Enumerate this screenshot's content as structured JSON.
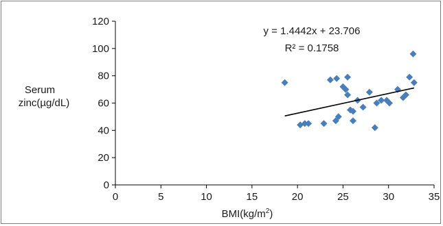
{
  "chart_data": {
    "type": "scatter",
    "xlabel": "BMI(kg/m",
    "xlabel_sup": "2",
    "xlabel_close": ")",
    "ylabel_line1": "Serum",
    "ylabel_line2": "zinc(µg/dL)",
    "xlim": [
      0,
      35
    ],
    "ylim": [
      0,
      120
    ],
    "x_ticks": [
      "0",
      "5",
      "10",
      "15",
      "20",
      "25",
      "30",
      "35"
    ],
    "y_ticks": [
      "0",
      "20",
      "40",
      "60",
      "80",
      "100",
      "120"
    ],
    "grid": false,
    "marker_color": "#4a7ebb",
    "trendline": {
      "equation": "y = 1.4442x + 23.706",
      "r_squared": "R² = 0.1758",
      "slope": 1.4442,
      "intercept": 23.706,
      "x_range": [
        18.6,
        32.8
      ]
    },
    "points": [
      {
        "x": 18.6,
        "y": 75
      },
      {
        "x": 20.3,
        "y": 44
      },
      {
        "x": 20.8,
        "y": 45
      },
      {
        "x": 21.2,
        "y": 45
      },
      {
        "x": 22.9,
        "y": 45
      },
      {
        "x": 23.6,
        "y": 77
      },
      {
        "x": 24.2,
        "y": 47
      },
      {
        "x": 24.3,
        "y": 78
      },
      {
        "x": 24.5,
        "y": 50
      },
      {
        "x": 25.0,
        "y": 72
      },
      {
        "x": 25.3,
        "y": 70
      },
      {
        "x": 25.5,
        "y": 79
      },
      {
        "x": 25.5,
        "y": 66
      },
      {
        "x": 25.8,
        "y": 55
      },
      {
        "x": 26.1,
        "y": 47
      },
      {
        "x": 26.1,
        "y": 54
      },
      {
        "x": 26.6,
        "y": 62
      },
      {
        "x": 27.2,
        "y": 57
      },
      {
        "x": 27.9,
        "y": 68
      },
      {
        "x": 28.5,
        "y": 42
      },
      {
        "x": 28.7,
        "y": 60
      },
      {
        "x": 29.2,
        "y": 62
      },
      {
        "x": 29.8,
        "y": 62
      },
      {
        "x": 30.1,
        "y": 60
      },
      {
        "x": 31.0,
        "y": 70
      },
      {
        "x": 31.6,
        "y": 64
      },
      {
        "x": 31.9,
        "y": 66
      },
      {
        "x": 32.3,
        "y": 79
      },
      {
        "x": 32.7,
        "y": 96
      },
      {
        "x": 32.8,
        "y": 75
      }
    ]
  }
}
